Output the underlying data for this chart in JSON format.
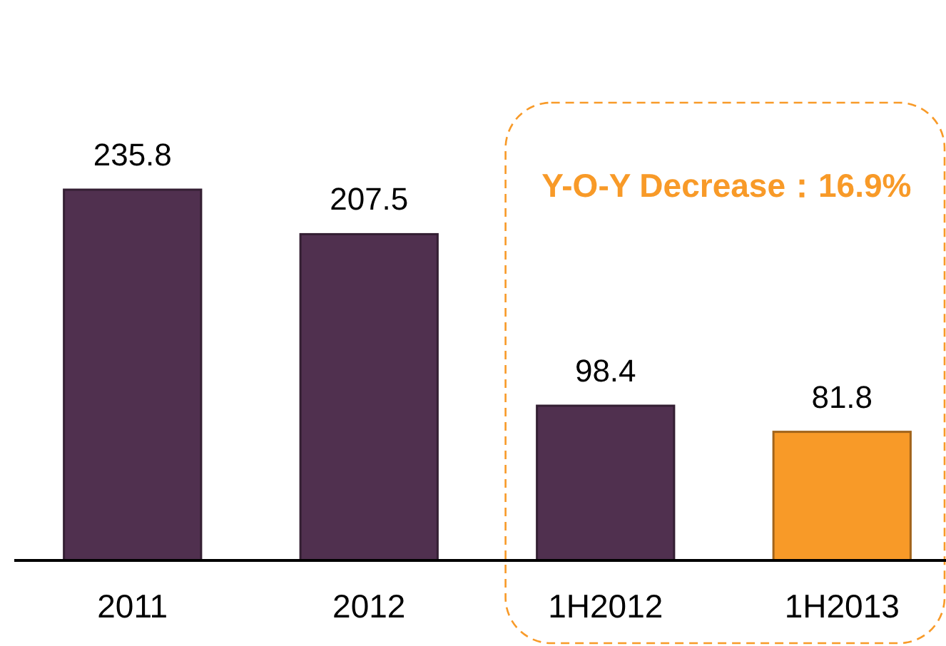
{
  "chart_data": {
    "type": "bar",
    "categories": [
      "2011",
      "2012",
      "1H2012",
      "1H2013"
    ],
    "values": [
      235.8,
      207.5,
      98.4,
      81.8
    ],
    "colors": [
      "#50304f",
      "#50304f",
      "#50304f",
      "#f89a28"
    ],
    "data_labels": true,
    "annotations": [
      "Y-O-Y Decrease：16.9%"
    ]
  }
}
